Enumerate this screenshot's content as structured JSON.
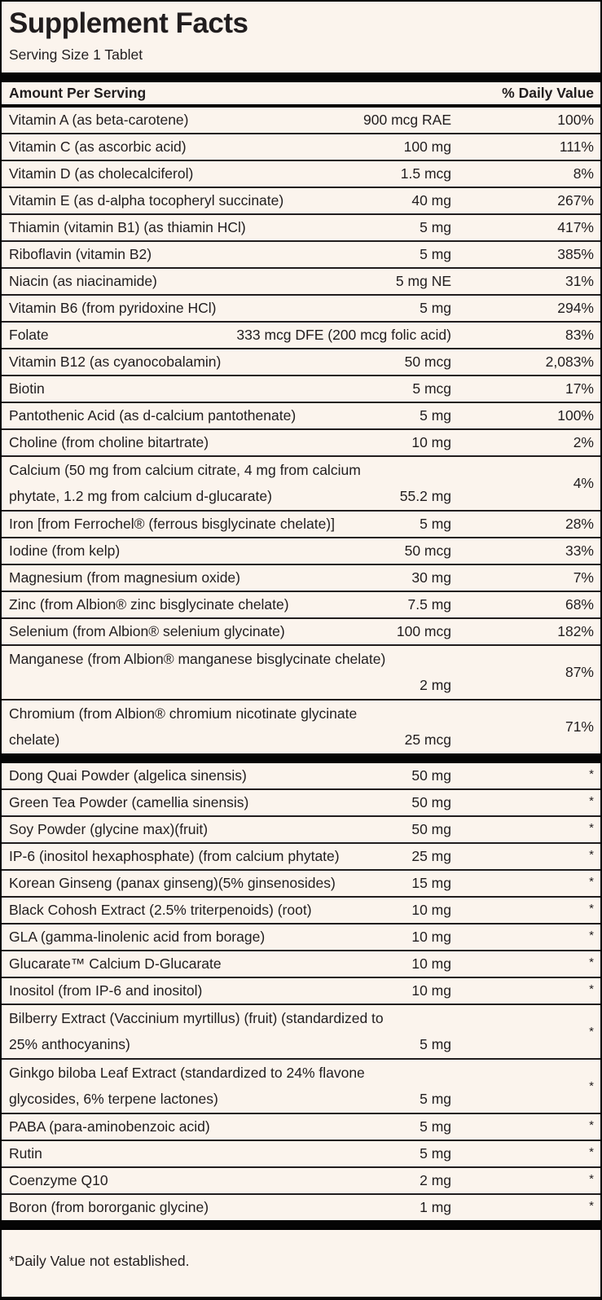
{
  "label": {
    "title": "Supplement Facts",
    "serving_size": "Serving Size 1 Tablet",
    "columns": {
      "amount_header": "Amount Per Serving",
      "dv_header": "% Daily Value"
    },
    "footnote": "*Daily Value not established.",
    "colors": {
      "background": "#FBF4ED",
      "text": "#211D1E",
      "rule": "#211D1E",
      "bar": "#050505"
    },
    "sections": [
      {
        "name": "vitamins-and-minerals",
        "rows": [
          {
            "name": "Vitamin A (as beta-carotene)",
            "amount": "900 mcg RAE",
            "dv": "100%"
          },
          {
            "name": "Vitamin C (as ascorbic acid)",
            "amount": "100 mg",
            "dv": "111%"
          },
          {
            "name": "Vitamin D (as cholecalciferol)",
            "amount": "1.5 mcg",
            "dv": "8%"
          },
          {
            "name": "Vitamin E (as d-alpha tocopheryl succinate)",
            "amount": "40 mg",
            "dv": "267%"
          },
          {
            "name": "Thiamin (vitamin B1) (as thiamin HCl)",
            "amount": "5 mg",
            "dv": "417%"
          },
          {
            "name": "Riboflavin (vitamin B2)",
            "amount": "5 mg",
            "dv": "385%"
          },
          {
            "name": "Niacin (as niacinamide)",
            "amount": "5 mg NE",
            "dv": "31%"
          },
          {
            "name": "Vitamin B6 (from pyridoxine HCl)",
            "amount": "5 mg",
            "dv": "294%"
          },
          {
            "name": "Folate",
            "amount": "333 mcg DFE (200 mcg folic acid)",
            "dv": "83%"
          },
          {
            "name": "Vitamin B12 (as cyanocobalamin)",
            "amount": "50 mcg",
            "dv": "2,083%"
          },
          {
            "name": "Biotin",
            "amount": "5 mcg",
            "dv": "17%"
          },
          {
            "name": "Pantothenic Acid (as d-calcium pantothenate)",
            "amount": "5 mg",
            "dv": "100%"
          },
          {
            "name": "Choline (from choline bitartrate)",
            "amount": "10 mg",
            "dv": "2%"
          },
          {
            "name": "Calcium (50 mg from calcium citrate, 4 mg from calcium",
            "name2": "phytate, 1.2 mg from calcium d-glucarate)",
            "amount": "55.2 mg",
            "dv": "4%"
          },
          {
            "name": "Iron [from Ferrochel® (ferrous bisglycinate chelate)]",
            "amount": "5 mg",
            "dv": "28%"
          },
          {
            "name": "Iodine (from kelp)",
            "amount": "50 mcg",
            "dv": "33%"
          },
          {
            "name": "Magnesium (from magnesium oxide)",
            "amount": "30 mg",
            "dv": "7%"
          },
          {
            "name": "Zinc (from Albion® zinc bisglycinate chelate)",
            "amount": "7.5 mg",
            "dv": "68%"
          },
          {
            "name": "Selenium (from Albion® selenium glycinate)",
            "amount": "100 mcg",
            "dv": "182%"
          },
          {
            "name": "Manganese (from Albion® manganese bisglycinate chelate)",
            "name2": "",
            "amount": "2 mg",
            "dv": "87%"
          },
          {
            "name": "Chromium (from Albion® chromium nicotinate glycinate",
            "name2": "chelate)",
            "amount": "25 mcg",
            "dv": "71%"
          }
        ]
      },
      {
        "name": "botanicals-and-other",
        "rows": [
          {
            "name": "Dong Quai Powder (algelica sinensis)",
            "amount": "50 mg",
            "dv": "*"
          },
          {
            "name": "Green Tea Powder (camellia sinensis)",
            "amount": "50 mg",
            "dv": "*"
          },
          {
            "name": "Soy Powder (glycine max)(fruit)",
            "amount": "50 mg",
            "dv": "*"
          },
          {
            "name": "IP-6 (inositol hexaphosphate) (from calcium phytate)",
            "amount": "25 mg",
            "dv": "*"
          },
          {
            "name": "Korean Ginseng (panax ginseng)(5% ginsenosides)",
            "amount": "15 mg",
            "dv": "*"
          },
          {
            "name": "Black Cohosh Extract (2.5% triterpenoids) (root)",
            "amount": "10 mg",
            "dv": "*"
          },
          {
            "name": "GLA (gamma-linolenic acid from borage)",
            "amount": "10 mg",
            "dv": "*"
          },
          {
            "name": "Glucarate™ Calcium D-Glucarate",
            "amount": "10 mg",
            "dv": "*"
          },
          {
            "name": "Inositol (from IP-6 and inositol)",
            "amount": "10 mg",
            "dv": "*"
          },
          {
            "name": "Bilberry Extract (Vaccinium myrtillus) (fruit) (standardized to",
            "name2": "25% anthocyanins)",
            "amount": "5 mg",
            "dv": "*"
          },
          {
            "name": "Ginkgo biloba Leaf Extract (standardized to 24% flavone",
            "name2": "glycosides, 6% terpene lactones)",
            "amount": "5 mg",
            "dv": "*"
          },
          {
            "name": "PABA (para-aminobenzoic acid)",
            "amount": "5 mg",
            "dv": "*"
          },
          {
            "name": "Rutin",
            "amount": "5 mg",
            "dv": "*"
          },
          {
            "name": "Coenzyme Q10",
            "amount": "2 mg",
            "dv": "*"
          },
          {
            "name": "Boron (from bororganic glycine)",
            "amount": "1 mg",
            "dv": "*"
          }
        ]
      }
    ]
  }
}
